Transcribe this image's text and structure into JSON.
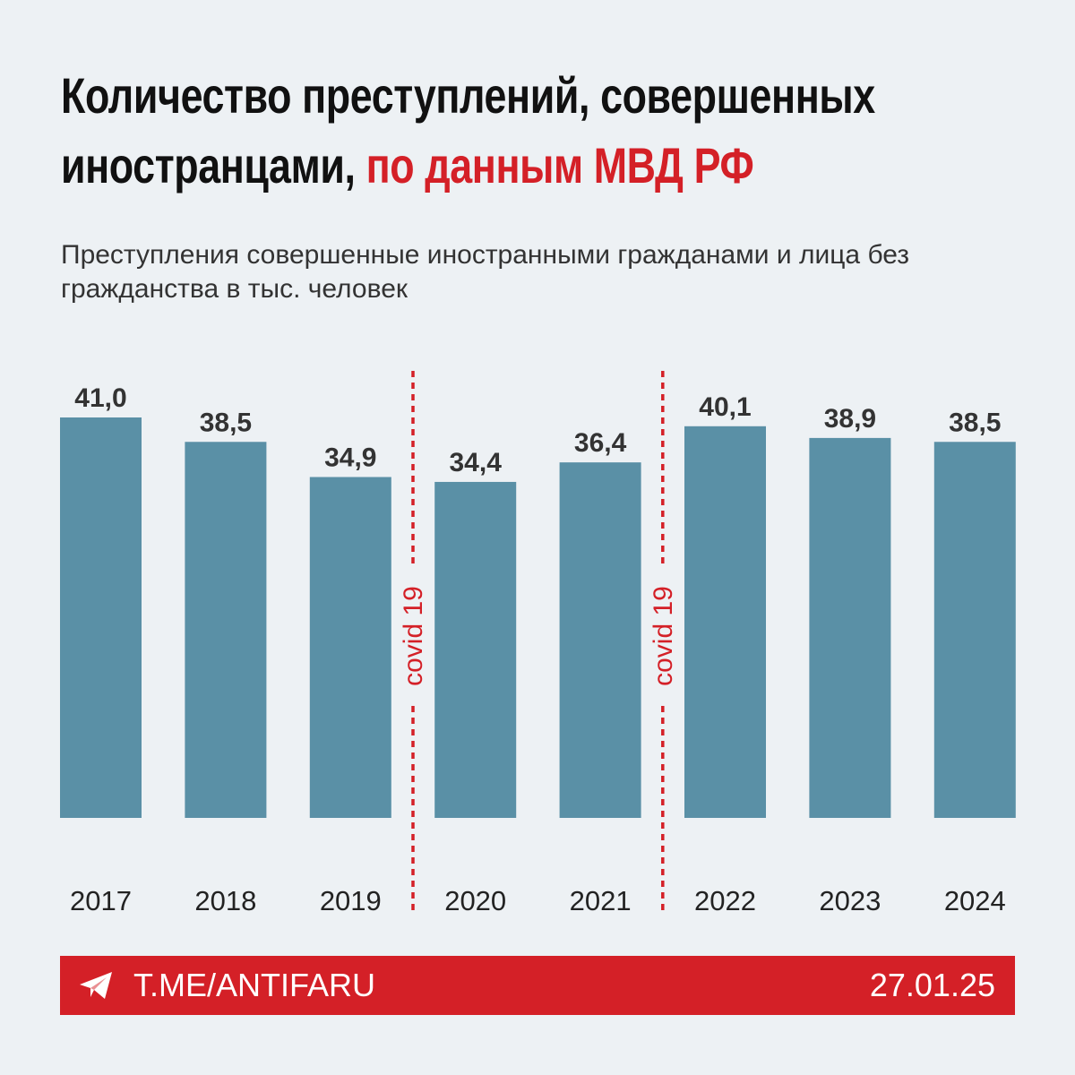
{
  "title": {
    "line1": "Количество преступлений, совершенных",
    "line2_black": "иностранцами,",
    "line2_red": "по данным МВД РФ"
  },
  "subtitle": "Преступления совершенные иностранными гражданами и лица без гражданства в тыс. человек",
  "footer": {
    "icon": "telegram-icon",
    "link": "T.ME/ANTIFARU",
    "date": "27.01.25"
  },
  "colors": {
    "bar": "#5a90a6",
    "accent": "#d42027",
    "background": "#edf1f4"
  },
  "chart_data": {
    "type": "bar",
    "categories": [
      "2017",
      "2018",
      "2019",
      "2020",
      "2021",
      "2022",
      "2023",
      "2024"
    ],
    "values": [
      41.0,
      38.5,
      34.9,
      34.4,
      36.4,
      40.1,
      38.9,
      38.5
    ],
    "labels": [
      "41,0",
      "38,5",
      "34,9",
      "34,4",
      "36,4",
      "40,1",
      "38,9",
      "38,5"
    ],
    "ylim": [
      0,
      41
    ],
    "grid": false,
    "annotations": [
      {
        "between": [
          "2019",
          "2020"
        ],
        "text": "covid 19"
      },
      {
        "between": [
          "2021",
          "2022"
        ],
        "text": "covid 19"
      }
    ]
  }
}
